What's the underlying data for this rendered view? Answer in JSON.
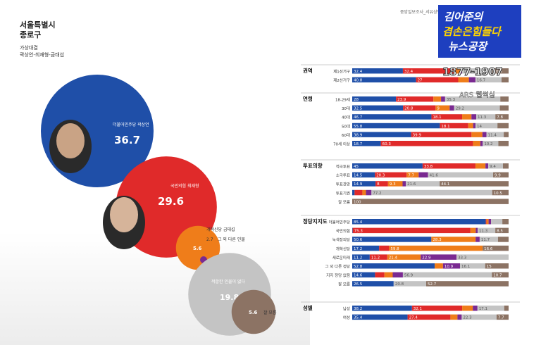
{
  "header": {
    "city": "서울특별시",
    "district": "종로구",
    "matchup_title": "가상대결",
    "matchup_names": "곽상언-최재형-금태섭"
  },
  "source": "중앙일보조사_서유상병",
  "logo": {
    "line1": "김어준의",
    "line2": "겸손은힘들다",
    "line3": "뉴스공장"
  },
  "poll_name": "1877-1907",
  "poll_method": "ARS 웹썩심",
  "colors": {
    "blue": "#1f4fa8",
    "red": "#e02a2a",
    "orange": "#ef7d1a",
    "purple": "#7a2a91",
    "gray": "#c4c4c4",
    "brown": "#8c7364",
    "lightgray": "#d6d6d6"
  },
  "chart_data": [
    {
      "type": "bubble",
      "items": [
        {
          "label": "더불어민주당 곽상언",
          "value": 36.7,
          "color": "#1f4fa8"
        },
        {
          "label": "국민의힘 최재형",
          "value": 29.6,
          "color": "#e02a2a"
        },
        {
          "label": "개혁신당 금태섭",
          "value": 5.6,
          "color": "#ef7d1a"
        },
        {
          "label": "그 외 다른 인물",
          "value": 2.7,
          "color": "#7a2a91"
        },
        {
          "label": "적합한 인물이 없다",
          "value": 19.8,
          "color": "#c4c4c4"
        },
        {
          "label": "잘 모름",
          "value": 5.6,
          "color": "#8c7364"
        }
      ]
    },
    {
      "type": "bar",
      "stacked": "horizontal-100",
      "series_colors": [
        "#1f4fa8",
        "#e02a2a",
        "#ef7d1a",
        "#7a2a91",
        "#c4c4c4",
        "#8c7364"
      ],
      "groups": [
        {
          "name": "권역",
          "rows": [
            {
              "label": "제1선거구",
              "values": [
                32.4,
                32.4,
                4.3,
                1.2,
                19.2,
                10.5
              ]
            },
            {
              "label": "제2선거구",
              "values": [
                40.8,
                27.0,
                6.8,
                4.2,
                16.7,
                4.5
              ]
            }
          ]
        },
        {
          "name": "연령",
          "rows": [
            {
              "label": "18-29세",
              "values": [
                28.0,
                23.9,
                4.9,
                2.6,
                35.3,
                5.3
              ]
            },
            {
              "label": "30대",
              "values": [
                32.5,
                20.8,
                9.0,
                2.9,
                29.2,
                5.6
              ]
            },
            {
              "label": "40대",
              "values": [
                46.7,
                18.1,
                5.5,
                2.8,
                11.3,
                7.8
              ]
            },
            {
              "label": "50대",
              "values": [
                55.8,
                18.1,
                3.1,
                1.5,
                14.0,
                7.1
              ]
            },
            {
              "label": "60대",
              "values": [
                38.9,
                39.9,
                7.2,
                2.7,
                11.4,
                3.2
              ]
            },
            {
              "label": "70세 이상",
              "values": [
                18.7,
                60.3,
                4.8,
                1.6,
                10.2,
                6.7
              ]
            }
          ]
        },
        {
          "name": "투표의향",
          "rows": [
            {
              "label": "적극투표",
              "values": [
                45.0,
                33.8,
                6.4,
                1.8,
                9.4,
                3.6
              ]
            },
            {
              "label": "소극투표",
              "values": [
                14.5,
                20.3,
                7.7,
                6.0,
                41.6,
                9.9
              ]
            },
            {
              "label": "투표관망",
              "values": [
                14.9,
                8.0,
                9.3,
                2.1,
                21.6,
                44.1
              ]
            },
            {
              "label": "투표기권",
              "values": [
                1.5,
                5.0,
                2.3,
                3.5,
                77.2,
                10.5
              ]
            },
            {
              "label": "잘 모름",
              "values": [
                0,
                0,
                0,
                0,
                0,
                100
              ]
            }
          ]
        },
        {
          "name": "정당지지도",
          "rows": [
            {
              "label": "더불어민주당",
              "values": [
                85.4,
                0.5,
                1.3,
                1.6,
                7.2,
                4.0
              ]
            },
            {
              "label": "국민의힘",
              "values": [
                0.3,
                75.3,
                3.4,
                1.2,
                11.3,
                8.5
              ]
            },
            {
              "label": "녹색정의당",
              "values": [
                50.6,
                0.0,
                28.3,
                2.6,
                11.7,
                6.8
              ]
            },
            {
              "label": "개혁신당",
              "values": [
                17.2,
                6.4,
                59.8,
                0.0,
                0.0,
                16.6
              ]
            },
            {
              "label": "새로운미래",
              "values": [
                11.2,
                11.2,
                21.4,
                22.9,
                33.3,
                0.0
              ]
            },
            {
              "label": "그 외 다른 정당",
              "values": [
                52.8,
                0.0,
                5.3,
                10.9,
                16.1,
                15.0
              ]
            },
            {
              "label": "지지 정당 없음",
              "values": [
                14.6,
                6.0,
                5.3,
                6.5,
                56.9,
                10.7
              ]
            },
            {
              "label": "잘 모름",
              "values": [
                26.5,
                0.0,
                0.0,
                0.0,
                20.8,
                52.7
              ]
            }
          ]
        },
        {
          "name": "성별",
          "rows": [
            {
              "label": "남성",
              "values": [
                38.2,
                32.1,
                6.8,
                3.0,
                17.1,
                2.8
              ]
            },
            {
              "label": "여성",
              "values": [
                35.4,
                27.4,
                4.5,
                2.7,
                22.3,
                7.7
              ]
            }
          ]
        }
      ]
    }
  ]
}
